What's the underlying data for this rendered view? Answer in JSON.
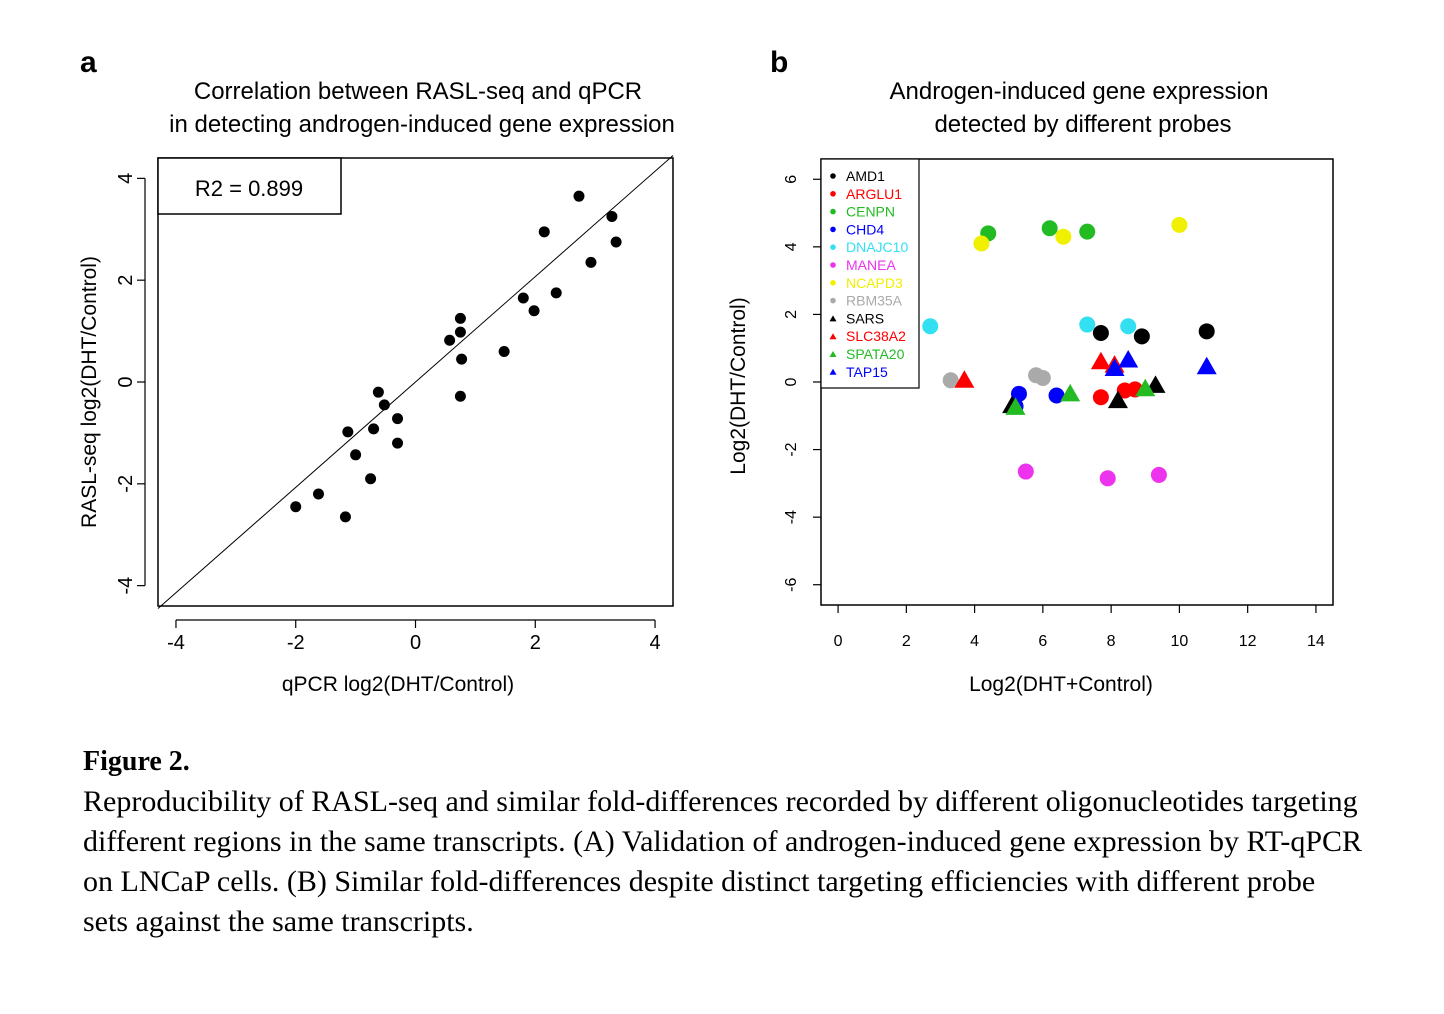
{
  "figure": {
    "panel_a_letter": "a",
    "panel_b_letter": "b",
    "caption_title": "Figure 2.",
    "caption_text": "Reproducibility of RASL-seq and similar fold-differences recorded by different oligonucleotides targeting different regions in the same transcripts. (A) Validation of androgen-induced gene expression by RT-qPCR on LNCaP cells. (B) Similar fold-differences despite distinct targeting efficiencies with different probe sets against the same transcripts."
  },
  "chart_data": [
    {
      "type": "scatter",
      "title": [
        "Correlation between RASL-seq and qPCR",
        "in detecting androgen-induced gene expression"
      ],
      "xlabel": "qPCR log2(DHT/Control)",
      "ylabel": "RASL-seq log2(DHT/Control)",
      "xlim": [
        -4.3,
        4.3
      ],
      "ylim": [
        -4.4,
        4.4
      ],
      "xticks": [
        -4,
        -2,
        0,
        2,
        4
      ],
      "yticks": [
        -4,
        -2,
        0,
        2,
        4
      ],
      "annotation": "R2 =  0.899",
      "fit_line": {
        "from": [
          -4.3,
          -4.45
        ],
        "to": [
          4.3,
          4.45
        ]
      },
      "points": [
        [
          2.73,
          3.65
        ],
        [
          3.28,
          3.25
        ],
        [
          3.35,
          2.75
        ],
        [
          2.15,
          2.95
        ],
        [
          2.93,
          2.35
        ],
        [
          2.35,
          1.75
        ],
        [
          1.8,
          1.65
        ],
        [
          1.98,
          1.4
        ],
        [
          0.75,
          1.25
        ],
        [
          0.75,
          0.98
        ],
        [
          0.57,
          0.82
        ],
        [
          0.77,
          0.45
        ],
        [
          1.48,
          0.6
        ],
        [
          0.75,
          -0.28
        ],
        [
          -0.62,
          -0.2
        ],
        [
          -0.52,
          -0.45
        ],
        [
          -0.3,
          -0.72
        ],
        [
          -0.7,
          -0.92
        ],
        [
          -1.13,
          -0.98
        ],
        [
          -0.3,
          -1.2
        ],
        [
          -1.0,
          -1.43
        ],
        [
          -0.75,
          -1.9
        ],
        [
          -1.62,
          -2.2
        ],
        [
          -2.0,
          -2.45
        ],
        [
          -1.17,
          -2.65
        ]
      ]
    },
    {
      "type": "scatter",
      "title": [
        "Androgen-induced gene expression",
        "detected by different probes"
      ],
      "xlabel": "Log2(DHT+Control)",
      "ylabel": "Log2(DHT/Control)",
      "xlim": [
        -0.5,
        14.5
      ],
      "ylim": [
        -6.6,
        6.6
      ],
      "xticks": [
        0,
        2,
        4,
        6,
        8,
        10,
        12,
        14
      ],
      "yticks": [
        -6,
        -4,
        -2,
        0,
        2,
        4,
        6
      ],
      "legend_position": "top-left",
      "series": [
        {
          "name": "AMD1",
          "color": "#000000",
          "shape": "circle",
          "points": [
            [
              7.7,
              1.45
            ],
            [
              8.9,
              1.35
            ],
            [
              10.8,
              1.5
            ]
          ]
        },
        {
          "name": "ARGLU1",
          "color": "#ff0000",
          "shape": "circle",
          "points": [
            [
              7.7,
              -0.45
            ],
            [
              8.4,
              -0.25
            ],
            [
              8.7,
              -0.22
            ]
          ]
        },
        {
          "name": "CENPN",
          "color": "#22bb22",
          "shape": "circle",
          "points": [
            [
              4.4,
              4.4
            ],
            [
              6.2,
              4.55
            ],
            [
              7.3,
              4.45
            ]
          ]
        },
        {
          "name": "CHD4",
          "color": "#0000ff",
          "shape": "circle",
          "points": [
            [
              5.3,
              -0.35
            ],
            [
              6.4,
              -0.4
            ],
            [
              5.2,
              -0.72
            ]
          ]
        },
        {
          "name": "DNAJC10",
          "color": "#33e0f2",
          "shape": "circle",
          "points": [
            [
              2.7,
              1.65
            ],
            [
              7.3,
              1.7
            ],
            [
              8.5,
              1.65
            ]
          ]
        },
        {
          "name": "MANEA",
          "color": "#ee33ee",
          "shape": "circle",
          "points": [
            [
              5.5,
              -2.65
            ],
            [
              7.9,
              -2.85
            ],
            [
              9.4,
              -2.75
            ]
          ]
        },
        {
          "name": "NCAPD3",
          "color": "#f0f000",
          "shape": "circle",
          "points": [
            [
              4.2,
              4.1
            ],
            [
              6.6,
              4.3
            ],
            [
              10.0,
              4.65
            ]
          ]
        },
        {
          "name": "RBM35A",
          "color": "#aaaaaa",
          "shape": "circle",
          "points": [
            [
              3.3,
              0.05
            ],
            [
              5.8,
              0.2
            ],
            [
              6.0,
              0.12
            ]
          ]
        },
        {
          "name": "SARS",
          "color": "#000000",
          "shape": "triangle",
          "points": [
            [
              8.2,
              -0.55
            ],
            [
              9.3,
              -0.1
            ],
            [
              5.1,
              -0.7
            ]
          ]
        },
        {
          "name": "SLC38A2",
          "color": "#ff0000",
          "shape": "triangle",
          "points": [
            [
              3.7,
              0.05
            ],
            [
              7.7,
              0.6
            ],
            [
              8.1,
              0.5
            ]
          ]
        },
        {
          "name": "SPATA20",
          "color": "#22bb22",
          "shape": "triangle",
          "points": [
            [
              5.2,
              -0.75
            ],
            [
              6.8,
              -0.35
            ],
            [
              9.0,
              -0.2
            ]
          ]
        },
        {
          "name": "TAP15",
          "color": "#0000ff",
          "shape": "triangle",
          "points": [
            [
              8.1,
              0.4
            ],
            [
              8.5,
              0.65
            ],
            [
              10.8,
              0.45
            ]
          ]
        }
      ]
    }
  ]
}
